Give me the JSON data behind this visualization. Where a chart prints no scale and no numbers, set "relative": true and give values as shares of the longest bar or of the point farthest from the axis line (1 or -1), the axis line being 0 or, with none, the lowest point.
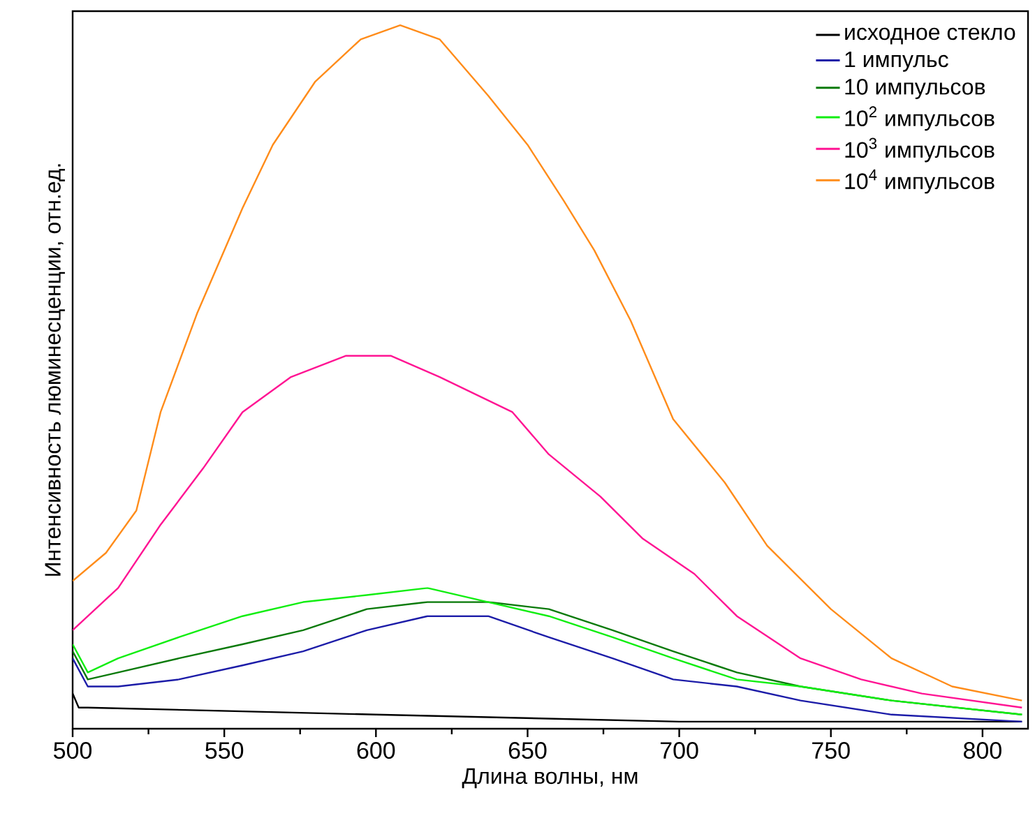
{
  "chart_data": {
    "type": "line",
    "xlabel": "Длина волны, нм",
    "ylabel": "Интенсивность люминесценции, отн.ед.",
    "relative": true,
    "xlim": [
      500,
      815
    ],
    "xticks": [
      500,
      550,
      600,
      650,
      700,
      750,
      800
    ],
    "legend": "top right",
    "line_style": "solid",
    "series": [
      {
        "name": "исходное стекло",
        "color": "#000000",
        "x": [
          500,
          502,
          505,
          600,
          700,
          813
        ],
        "values": [
          0.05,
          0.03,
          0.03,
          0.02,
          0.01,
          0.01
        ]
      },
      {
        "name": "1 импульс",
        "color": "#1c1ca8",
        "x": [
          500,
          505,
          515,
          535,
          556,
          576,
          597,
          617,
          637,
          657,
          678,
          698,
          719,
          740,
          770,
          813
        ],
        "values": [
          0.1,
          0.06,
          0.06,
          0.07,
          0.09,
          0.11,
          0.14,
          0.16,
          0.16,
          0.13,
          0.1,
          0.07,
          0.06,
          0.04,
          0.02,
          0.01
        ]
      },
      {
        "name": "10 импульсов",
        "color": "#0a7a0a",
        "x": [
          500,
          505,
          515,
          535,
          556,
          576,
          597,
          617,
          637,
          657,
          678,
          698,
          719,
          740,
          770,
          813
        ],
        "values": [
          0.11,
          0.07,
          0.08,
          0.1,
          0.12,
          0.14,
          0.17,
          0.18,
          0.18,
          0.17,
          0.14,
          0.11,
          0.08,
          0.06,
          0.04,
          0.02
        ]
      },
      {
        "name": "10$^{2}$ импульсов",
        "color": "#11ee11",
        "x": [
          500,
          505,
          515,
          535,
          556,
          576,
          597,
          617,
          637,
          657,
          678,
          698,
          719,
          740,
          770,
          813
        ],
        "values": [
          0.12,
          0.08,
          0.1,
          0.13,
          0.16,
          0.18,
          0.19,
          0.2,
          0.18,
          0.16,
          0.13,
          0.1,
          0.07,
          0.06,
          0.04,
          0.02
        ]
      },
      {
        "name": "10$^{3}$ импульсов",
        "color": "#ff1493",
        "x": [
          500,
          515,
          529,
          543,
          556,
          572,
          590,
          605,
          621,
          645,
          657,
          674,
          688,
          705,
          719,
          740,
          760,
          780,
          813
        ],
        "values": [
          0.14,
          0.2,
          0.29,
          0.37,
          0.45,
          0.5,
          0.53,
          0.53,
          0.5,
          0.45,
          0.39,
          0.33,
          0.27,
          0.22,
          0.16,
          0.1,
          0.07,
          0.05,
          0.03
        ]
      },
      {
        "name": "10$^{4}$ импульсов",
        "color": "#ff8c1a",
        "x": [
          500,
          511,
          521,
          529,
          541,
          556,
          566,
          580,
          595,
          608,
          621,
          637,
          650,
          662,
          672,
          684,
          698,
          715,
          729,
          750,
          770,
          790,
          813
        ],
        "values": [
          0.21,
          0.25,
          0.31,
          0.45,
          0.59,
          0.74,
          0.83,
          0.92,
          0.98,
          1,
          0.98,
          0.9,
          0.83,
          0.75,
          0.68,
          0.58,
          0.44,
          0.35,
          0.26,
          0.17,
          0.1,
          0.06,
          0.04
        ]
      }
    ]
  }
}
